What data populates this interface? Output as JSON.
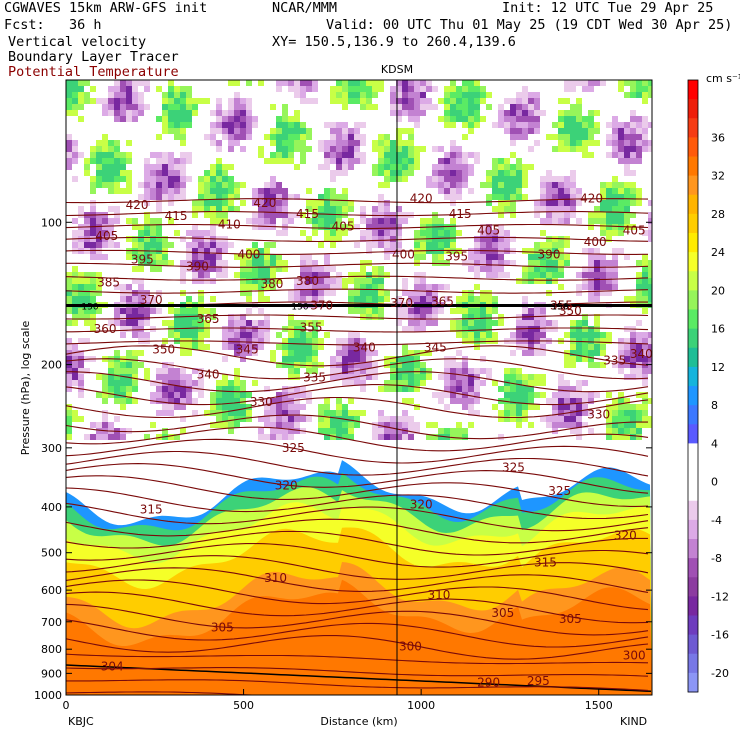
{
  "header": {
    "model": "CGWAVES 15km ARW-GFS init",
    "org": "NCAR/MMM",
    "init": "Init: 12 UTC Tue 29 Apr 25",
    "fcst": "Fcst:   36 h",
    "valid": "Valid: 00 UTC Thu 01 May 25 (19 CDT Wed 30 Apr 25)",
    "xy": "XY= 150.5,136.9 to 260.4,139.6",
    "field1": "Vertical velocity",
    "field2": "Boundary Layer Tracer",
    "field3": "Potential Temperature",
    "station_mid": "KDSM",
    "station_left": "KBJC",
    "station_right": "KIND"
  },
  "colors": {
    "theta_contour": "#7a0a0a",
    "pbl_tracer": "#000000"
  },
  "chart_data": {
    "type": "heatmap",
    "xlabel": "Distance (km)",
    "ylabel": "Pressure (hPa), log scale",
    "xlim": [
      0,
      1650
    ],
    "ylim": [
      1000,
      50
    ],
    "y_scale": "log",
    "x_ticks": [
      "0",
      "500",
      "1000",
      "1500"
    ],
    "y_ticks": [
      "100",
      "200",
      "300",
      "400",
      "500",
      "600",
      "700",
      "800",
      "900",
      "1000"
    ],
    "colorbar": {
      "units": "cm s⁻¹",
      "labels": [
        "36",
        "32",
        "28",
        "24",
        "20",
        "16",
        "12",
        "8",
        "4",
        "0",
        "-4",
        "-8",
        "-12",
        "-16",
        "-20"
      ],
      "colors": [
        "#ff0000",
        "#ee1e0a",
        "#f53c14",
        "#ff5a0a",
        "#ff7800",
        "#ff961e",
        "#ffb400",
        "#ffcd00",
        "#ffeb00",
        "#f5ff28",
        "#c8ff46",
        "#96f55a",
        "#5aeb64",
        "#3cd278",
        "#1ebe96",
        "#14b4dc",
        "#1e96ff",
        "#3c78ff",
        "#5a5aff",
        "#ffffff",
        "#ffffff",
        "#ffffff",
        "#ebcbeb",
        "#dcaae6",
        "#c382d2",
        "#a050b4",
        "#8c3ca0",
        "#7828a0",
        "#6e3cbe",
        "#6e5ad2",
        "#7878e6",
        "#8c96f5"
      ]
    },
    "theta_labels": [
      {
        "text": "420",
        "x": 200,
        "p": 92
      },
      {
        "text": "415",
        "x": 310,
        "p": 97
      },
      {
        "text": "410",
        "x": 460,
        "p": 101
      },
      {
        "text": "420",
        "x": 560,
        "p": 91
      },
      {
        "text": "415",
        "x": 680,
        "p": 96
      },
      {
        "text": "405",
        "x": 780,
        "p": 102
      },
      {
        "text": "420",
        "x": 1000,
        "p": 89
      },
      {
        "text": "415",
        "x": 1110,
        "p": 96
      },
      {
        "text": "405",
        "x": 1190,
        "p": 104
      },
      {
        "text": "390",
        "x": 1360,
        "p": 117
      },
      {
        "text": "400",
        "x": 1490,
        "p": 110
      },
      {
        "text": "405",
        "x": 1600,
        "p": 104
      },
      {
        "text": "420",
        "x": 1480,
        "p": 89
      },
      {
        "text": "405",
        "x": 115,
        "p": 107
      },
      {
        "text": "395",
        "x": 215,
        "p": 120
      },
      {
        "text": "390",
        "x": 370,
        "p": 124
      },
      {
        "text": "400",
        "x": 515,
        "p": 117
      },
      {
        "text": "400",
        "x": 950,
        "p": 117
      },
      {
        "text": "395",
        "x": 1100,
        "p": 118
      },
      {
        "text": "385",
        "x": 120,
        "p": 134
      },
      {
        "text": "380",
        "x": 680,
        "p": 133
      },
      {
        "text": "380",
        "x": 580,
        "p": 135
      },
      {
        "text": "370",
        "x": 945,
        "p": 148
      },
      {
        "text": "365",
        "x": 1060,
        "p": 147
      },
      {
        "text": "360",
        "x": 110,
        "p": 168
      },
      {
        "text": "365",
        "x": 400,
        "p": 160
      },
      {
        "text": "370",
        "x": 240,
        "p": 146
      },
      {
        "text": "370",
        "x": 720,
        "p": 150
      },
      {
        "text": "355",
        "x": 690,
        "p": 167
      },
      {
        "text": "355",
        "x": 1395,
        "p": 150
      },
      {
        "text": "350",
        "x": 1420,
        "p": 154
      },
      {
        "text": "340",
        "x": 1620,
        "p": 190
      },
      {
        "text": "335",
        "x": 1545,
        "p": 196
      },
      {
        "text": "350",
        "x": 275,
        "p": 186
      },
      {
        "text": "345",
        "x": 510,
        "p": 186
      },
      {
        "text": "340",
        "x": 400,
        "p": 210
      },
      {
        "text": "340",
        "x": 840,
        "p": 184
      },
      {
        "text": "345",
        "x": 1040,
        "p": 184
      },
      {
        "text": "335",
        "x": 700,
        "p": 213
      },
      {
        "text": "330",
        "x": 550,
        "p": 240
      },
      {
        "text": "330",
        "x": 1500,
        "p": 255
      },
      {
        "text": "325",
        "x": 640,
        "p": 300
      },
      {
        "text": "325",
        "x": 1260,
        "p": 330
      },
      {
        "text": "325",
        "x": 1390,
        "p": 370
      },
      {
        "text": "320",
        "x": 620,
        "p": 360
      },
      {
        "text": "320",
        "x": 1000,
        "p": 395
      },
      {
        "text": "320",
        "x": 1575,
        "p": 460
      },
      {
        "text": "315",
        "x": 240,
        "p": 405
      },
      {
        "text": "315",
        "x": 1350,
        "p": 525
      },
      {
        "text": "310",
        "x": 590,
        "p": 565
      },
      {
        "text": "310",
        "x": 1050,
        "p": 615
      },
      {
        "text": "305",
        "x": 440,
        "p": 720
      },
      {
        "text": "305",
        "x": 1230,
        "p": 670
      },
      {
        "text": "305",
        "x": 1420,
        "p": 690
      },
      {
        "text": "300",
        "x": 970,
        "p": 790
      },
      {
        "text": "300",
        "x": 1600,
        "p": 825
      },
      {
        "text": "295",
        "x": 1330,
        "p": 935
      },
      {
        "text": "290",
        "x": 1190,
        "p": 940
      },
      {
        "text": "304",
        "x": 130,
        "p": 870
      }
    ],
    "thick_line": {
      "p": 150,
      "label": "150"
    },
    "grid": false,
    "legend": "none"
  }
}
